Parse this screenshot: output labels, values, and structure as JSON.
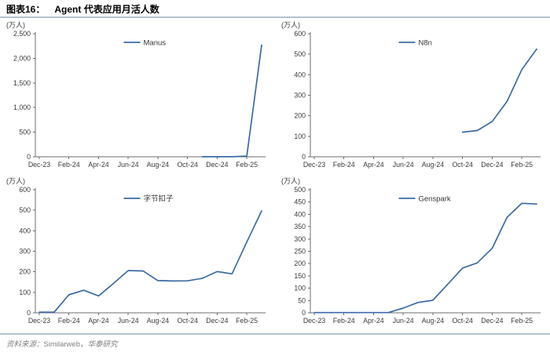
{
  "header": {
    "figure_label": "图表16：",
    "title": "Agent 代表应用月活人数"
  },
  "footer": {
    "source_label": "资料来源：",
    "source_name": "Similarweb，",
    "source_suffix": "华泰研究"
  },
  "colors": {
    "line": "#3a6ba5",
    "rule": "#b3c1d1",
    "axis": "#6e6e6e",
    "text": "#3a3a3a",
    "footer_text": "#7f7f7f"
  },
  "chart_data": [
    {
      "type": "line",
      "name": "Manus",
      "unit_label": "(万人)",
      "ylim": [
        0,
        2500
      ],
      "y_step": 500,
      "months_total": 16,
      "start_index": 11,
      "x_tick_labels": [
        "Dec-23",
        "Feb-24",
        "Apr-24",
        "Jun-24",
        "Aug-24",
        "Oct-24",
        "Dec-24",
        "Feb-25"
      ],
      "x": [
        "Nov-24",
        "Dec-24",
        "Jan-25",
        "Feb-25",
        "Mar-25"
      ],
      "values": [
        1,
        1,
        1,
        15,
        2270
      ]
    },
    {
      "type": "line",
      "name": "N8n",
      "unit_label": "(万人)",
      "ylim": [
        0,
        600
      ],
      "y_step": 100,
      "months_total": 16,
      "start_index": 10,
      "x_tick_labels": [
        "Dec-23",
        "Feb-24",
        "Apr-24",
        "Jun-24",
        "Aug-24",
        "Oct-24",
        "Dec-24",
        "Feb-25"
      ],
      "x": [
        "Oct-24",
        "Nov-24",
        "Dec-24",
        "Jan-25",
        "Feb-25",
        "Mar-25"
      ],
      "values": [
        120,
        128,
        172,
        270,
        425,
        525
      ]
    },
    {
      "type": "line",
      "name": "字节扣子",
      "unit_label": "(万人)",
      "ylim": [
        0,
        600
      ],
      "y_step": 100,
      "months_total": 16,
      "start_index": 0,
      "x_tick_labels": [
        "Dec-23",
        "Feb-24",
        "Apr-24",
        "Jun-24",
        "Aug-24",
        "Oct-24",
        "Dec-24",
        "Feb-25"
      ],
      "x": [
        "Dec-23",
        "Jan-24",
        "Feb-24",
        "Mar-24",
        "Apr-24",
        "May-24",
        "Jun-24",
        "Jul-24",
        "Aug-24",
        "Sep-24",
        "Oct-24",
        "Nov-24",
        "Dec-24",
        "Jan-25",
        "Feb-25",
        "Mar-25"
      ],
      "values": [
        3,
        3,
        88,
        110,
        82,
        143,
        206,
        204,
        157,
        155,
        156,
        168,
        201,
        190,
        345,
        497
      ]
    },
    {
      "type": "line",
      "name": "Genspark",
      "unit_label": "(万人)",
      "ylim": [
        0,
        500
      ],
      "y_step": 50,
      "months_total": 16,
      "start_index": 0,
      "x_tick_labels": [
        "Dec-23",
        "Feb-24",
        "Apr-24",
        "Jun-24",
        "Aug-24",
        "Oct-24",
        "Dec-24",
        "Feb-25"
      ],
      "x": [
        "Dec-23",
        "Jan-24",
        "Feb-24",
        "Mar-24",
        "Apr-24",
        "May-24",
        "Jun-24",
        "Jul-24",
        "Aug-24",
        "Sep-24",
        "Oct-24",
        "Nov-24",
        "Dec-24",
        "Jan-25",
        "Feb-25",
        "Mar-25"
      ],
      "values": [
        1,
        1,
        1,
        1,
        1,
        1,
        19,
        42,
        51,
        116,
        182,
        203,
        262,
        388,
        445,
        442
      ]
    }
  ]
}
